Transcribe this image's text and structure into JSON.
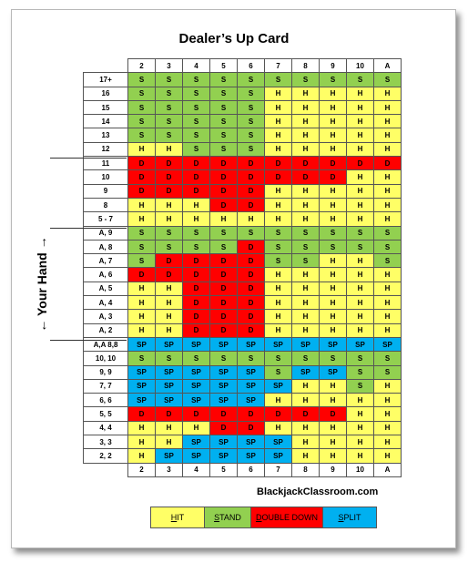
{
  "title": "Dealer’s Up Card",
  "side_label": "← Your Hand →",
  "site": "BlackjackClassroom.com",
  "colors": {
    "H": "#ffff66",
    "S": "#92d050",
    "D": "#ff0000",
    "SP": "#00b0f0"
  },
  "dealer_cards": [
    "2",
    "3",
    "4",
    "5",
    "6",
    "7",
    "8",
    "9",
    "10",
    "A"
  ],
  "rows": [
    {
      "label": "17+",
      "cells": [
        "S",
        "S",
        "S",
        "S",
        "S",
        "S",
        "S",
        "S",
        "S",
        "S"
      ]
    },
    {
      "label": "16",
      "cells": [
        "S",
        "S",
        "S",
        "S",
        "S",
        "H",
        "H",
        "H",
        "H",
        "H"
      ]
    },
    {
      "label": "15",
      "cells": [
        "S",
        "S",
        "S",
        "S",
        "S",
        "H",
        "H",
        "H",
        "H",
        "H"
      ]
    },
    {
      "label": "14",
      "cells": [
        "S",
        "S",
        "S",
        "S",
        "S",
        "H",
        "H",
        "H",
        "H",
        "H"
      ]
    },
    {
      "label": "13",
      "cells": [
        "S",
        "S",
        "S",
        "S",
        "S",
        "H",
        "H",
        "H",
        "H",
        "H"
      ]
    },
    {
      "label": "12",
      "cells": [
        "H",
        "H",
        "S",
        "S",
        "S",
        "H",
        "H",
        "H",
        "H",
        "H"
      ]
    },
    {
      "label": "11",
      "cells": [
        "D",
        "D",
        "D",
        "D",
        "D",
        "D",
        "D",
        "D",
        "D",
        "D"
      ]
    },
    {
      "label": "10",
      "cells": [
        "D",
        "D",
        "D",
        "D",
        "D",
        "D",
        "D",
        "D",
        "H",
        "H"
      ]
    },
    {
      "label": "9",
      "cells": [
        "D",
        "D",
        "D",
        "D",
        "D",
        "H",
        "H",
        "H",
        "H",
        "H"
      ]
    },
    {
      "label": "8",
      "cells": [
        "H",
        "H",
        "H",
        "D",
        "D",
        "H",
        "H",
        "H",
        "H",
        "H"
      ]
    },
    {
      "label": "5 - 7",
      "cells": [
        "H",
        "H",
        "H",
        "H",
        "H",
        "H",
        "H",
        "H",
        "H",
        "H"
      ]
    },
    {
      "label": "A, 9",
      "cells": [
        "S",
        "S",
        "S",
        "S",
        "S",
        "S",
        "S",
        "S",
        "S",
        "S"
      ]
    },
    {
      "label": "A, 8",
      "cells": [
        "S",
        "S",
        "S",
        "S",
        "D",
        "S",
        "S",
        "S",
        "S",
        "S"
      ]
    },
    {
      "label": "A, 7",
      "cells": [
        "S",
        "D",
        "D",
        "D",
        "D",
        "S",
        "S",
        "H",
        "H",
        "S"
      ]
    },
    {
      "label": "A, 6",
      "cells": [
        "D",
        "D",
        "D",
        "D",
        "D",
        "H",
        "H",
        "H",
        "H",
        "H"
      ]
    },
    {
      "label": "A, 5",
      "cells": [
        "H",
        "H",
        "D",
        "D",
        "D",
        "H",
        "H",
        "H",
        "H",
        "H"
      ]
    },
    {
      "label": "A, 4",
      "cells": [
        "H",
        "H",
        "D",
        "D",
        "D",
        "H",
        "H",
        "H",
        "H",
        "H"
      ]
    },
    {
      "label": "A, 3",
      "cells": [
        "H",
        "H",
        "D",
        "D",
        "D",
        "H",
        "H",
        "H",
        "H",
        "H"
      ]
    },
    {
      "label": "A, 2",
      "cells": [
        "H",
        "H",
        "D",
        "D",
        "D",
        "H",
        "H",
        "H",
        "H",
        "H"
      ]
    },
    {
      "label": "A,A 8,8",
      "cells": [
        "SP",
        "SP",
        "SP",
        "SP",
        "SP",
        "SP",
        "SP",
        "SP",
        "SP",
        "SP"
      ]
    },
    {
      "label": "10, 10",
      "cells": [
        "S",
        "S",
        "S",
        "S",
        "S",
        "S",
        "S",
        "S",
        "S",
        "S"
      ]
    },
    {
      "label": "9, 9",
      "cells": [
        "SP",
        "SP",
        "SP",
        "SP",
        "SP",
        "S",
        "SP",
        "SP",
        "S",
        "S"
      ]
    },
    {
      "label": "7, 7",
      "cells": [
        "SP",
        "SP",
        "SP",
        "SP",
        "SP",
        "SP",
        "H",
        "H",
        "S",
        "H"
      ]
    },
    {
      "label": "6, 6",
      "cells": [
        "SP",
        "SP",
        "SP",
        "SP",
        "SP",
        "H",
        "H",
        "H",
        "H",
        "H"
      ]
    },
    {
      "label": "5, 5",
      "cells": [
        "D",
        "D",
        "D",
        "D",
        "D",
        "D",
        "D",
        "D",
        "H",
        "H"
      ]
    },
    {
      "label": "4, 4",
      "cells": [
        "H",
        "H",
        "H",
        "D",
        "D",
        "H",
        "H",
        "H",
        "H",
        "H"
      ]
    },
    {
      "label": "3, 3",
      "cells": [
        "H",
        "H",
        "SP",
        "SP",
        "SP",
        "SP",
        "H",
        "H",
        "H",
        "H"
      ]
    },
    {
      "label": "2, 2",
      "cells": [
        "H",
        "SP",
        "SP",
        "SP",
        "SP",
        "SP",
        "H",
        "H",
        "H",
        "H"
      ]
    }
  ],
  "legend": [
    {
      "code": "H",
      "text": "HIT",
      "underline": "H",
      "rest": "IT",
      "width": 58
    },
    {
      "code": "S",
      "text": "STAND",
      "underline": "S",
      "rest": "TAND",
      "width": 50
    },
    {
      "code": "D",
      "text": "DOUBLE DOWN",
      "underline": "D",
      "rest": "OUBLE DOWN",
      "width": 78
    },
    {
      "code": "SP",
      "text": "SPLIT",
      "underline": "S",
      "rest": "PLIT",
      "width": 58
    }
  ]
}
